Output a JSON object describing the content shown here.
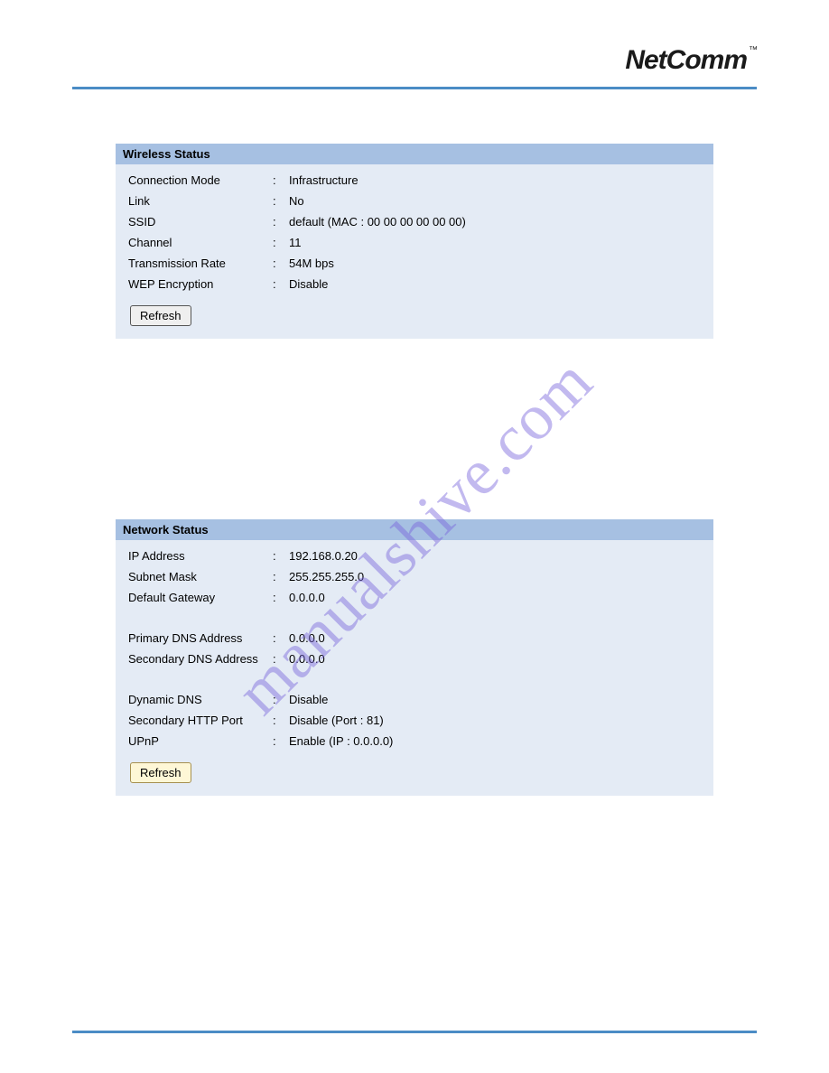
{
  "header": {
    "brand": "NetComm",
    "trademark": "™"
  },
  "watermark": "manualshive.com",
  "colors": {
    "panel_bg": "#e4ebf5",
    "panel_title_bg": "#a6c0e2",
    "rule": "#4b8cc5",
    "watermark": "rgba(120,100,220,0.45)"
  },
  "wireless_status": {
    "title": "Wireless Status",
    "connection_mode": {
      "label": "Connection Mode",
      "value": "Infrastructure"
    },
    "link": {
      "label": "Link",
      "value": "No"
    },
    "ssid": {
      "label": "SSID",
      "value": "default (MAC : 00 00 00 00 00 00)"
    },
    "channel": {
      "label": "Channel",
      "value": "11"
    },
    "transmission_rate": {
      "label": "Transmission Rate",
      "value": "54M bps"
    },
    "wep_encryption": {
      "label": "WEP Encryption",
      "value": "Disable"
    },
    "refresh_label": "Refresh"
  },
  "network_status": {
    "title": "Network Status",
    "ip_address": {
      "label": "IP Address",
      "value": "192.168.0.20"
    },
    "subnet_mask": {
      "label": "Subnet Mask",
      "value": "255.255.255.0"
    },
    "default_gateway": {
      "label": "Default Gateway",
      "value": "0.0.0.0"
    },
    "primary_dns": {
      "label": "Primary DNS Address",
      "value": "0.0.0.0"
    },
    "secondary_dns": {
      "label": "Secondary DNS Address",
      "value": "0.0.0.0"
    },
    "dynamic_dns": {
      "label": "Dynamic DNS",
      "value": "Disable"
    },
    "secondary_http_port": {
      "label": "Secondary HTTP Port",
      "value": "Disable (Port : 81)"
    },
    "upnp": {
      "label": "UPnP",
      "value": "Enable (IP : 0.0.0.0)"
    },
    "refresh_label": "Refresh"
  }
}
